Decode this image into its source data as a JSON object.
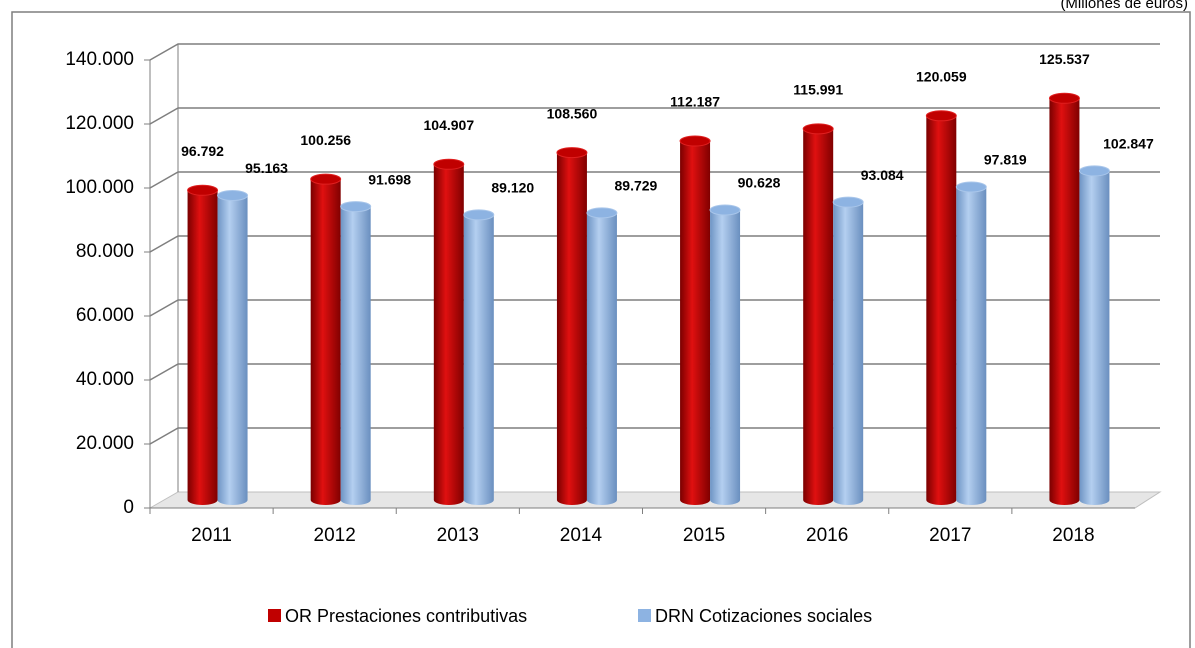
{
  "chart_data": {
    "type": "bar",
    "subtitle": "(Millones de euros)",
    "categories": [
      "2011",
      "2012",
      "2013",
      "2014",
      "2015",
      "2016",
      "2017",
      "2018"
    ],
    "series": [
      {
        "name": "OR Prestaciones contributivas",
        "color": "#c00000",
        "values": [
          96792,
          100256,
          104907,
          108560,
          112187,
          115991,
          120059,
          125537
        ],
        "value_labels": [
          "96.792",
          "100.256",
          "104.907",
          "108.560",
          "112.187",
          "115.991",
          "120.059",
          "125.537"
        ]
      },
      {
        "name": "DRN Cotizaciones sociales",
        "color": "#8db3e2",
        "values": [
          95163,
          91698,
          89120,
          89729,
          90628,
          93084,
          97819,
          102847
        ],
        "value_labels": [
          "95.163",
          "91.698",
          "89.120",
          "89.729",
          "90.628",
          "93.084",
          "97.819",
          "102.847"
        ]
      }
    ],
    "ylim": [
      0,
      140000
    ],
    "yticks": [
      0,
      {
        "value": 20000,
        "label": "20.000"
      },
      {
        "value": 40000,
        "label": "40.000"
      },
      {
        "value": 60000,
        "label": "60.000"
      },
      {
        "value": 80000,
        "label": "80.000"
      },
      {
        "value": 100000,
        "label": "100.000"
      },
      {
        "value": 120000,
        "label": "120.000"
      },
      {
        "value": 140000,
        "label": "140.000"
      }
    ],
    "grid": true,
    "legend": "bottom"
  }
}
